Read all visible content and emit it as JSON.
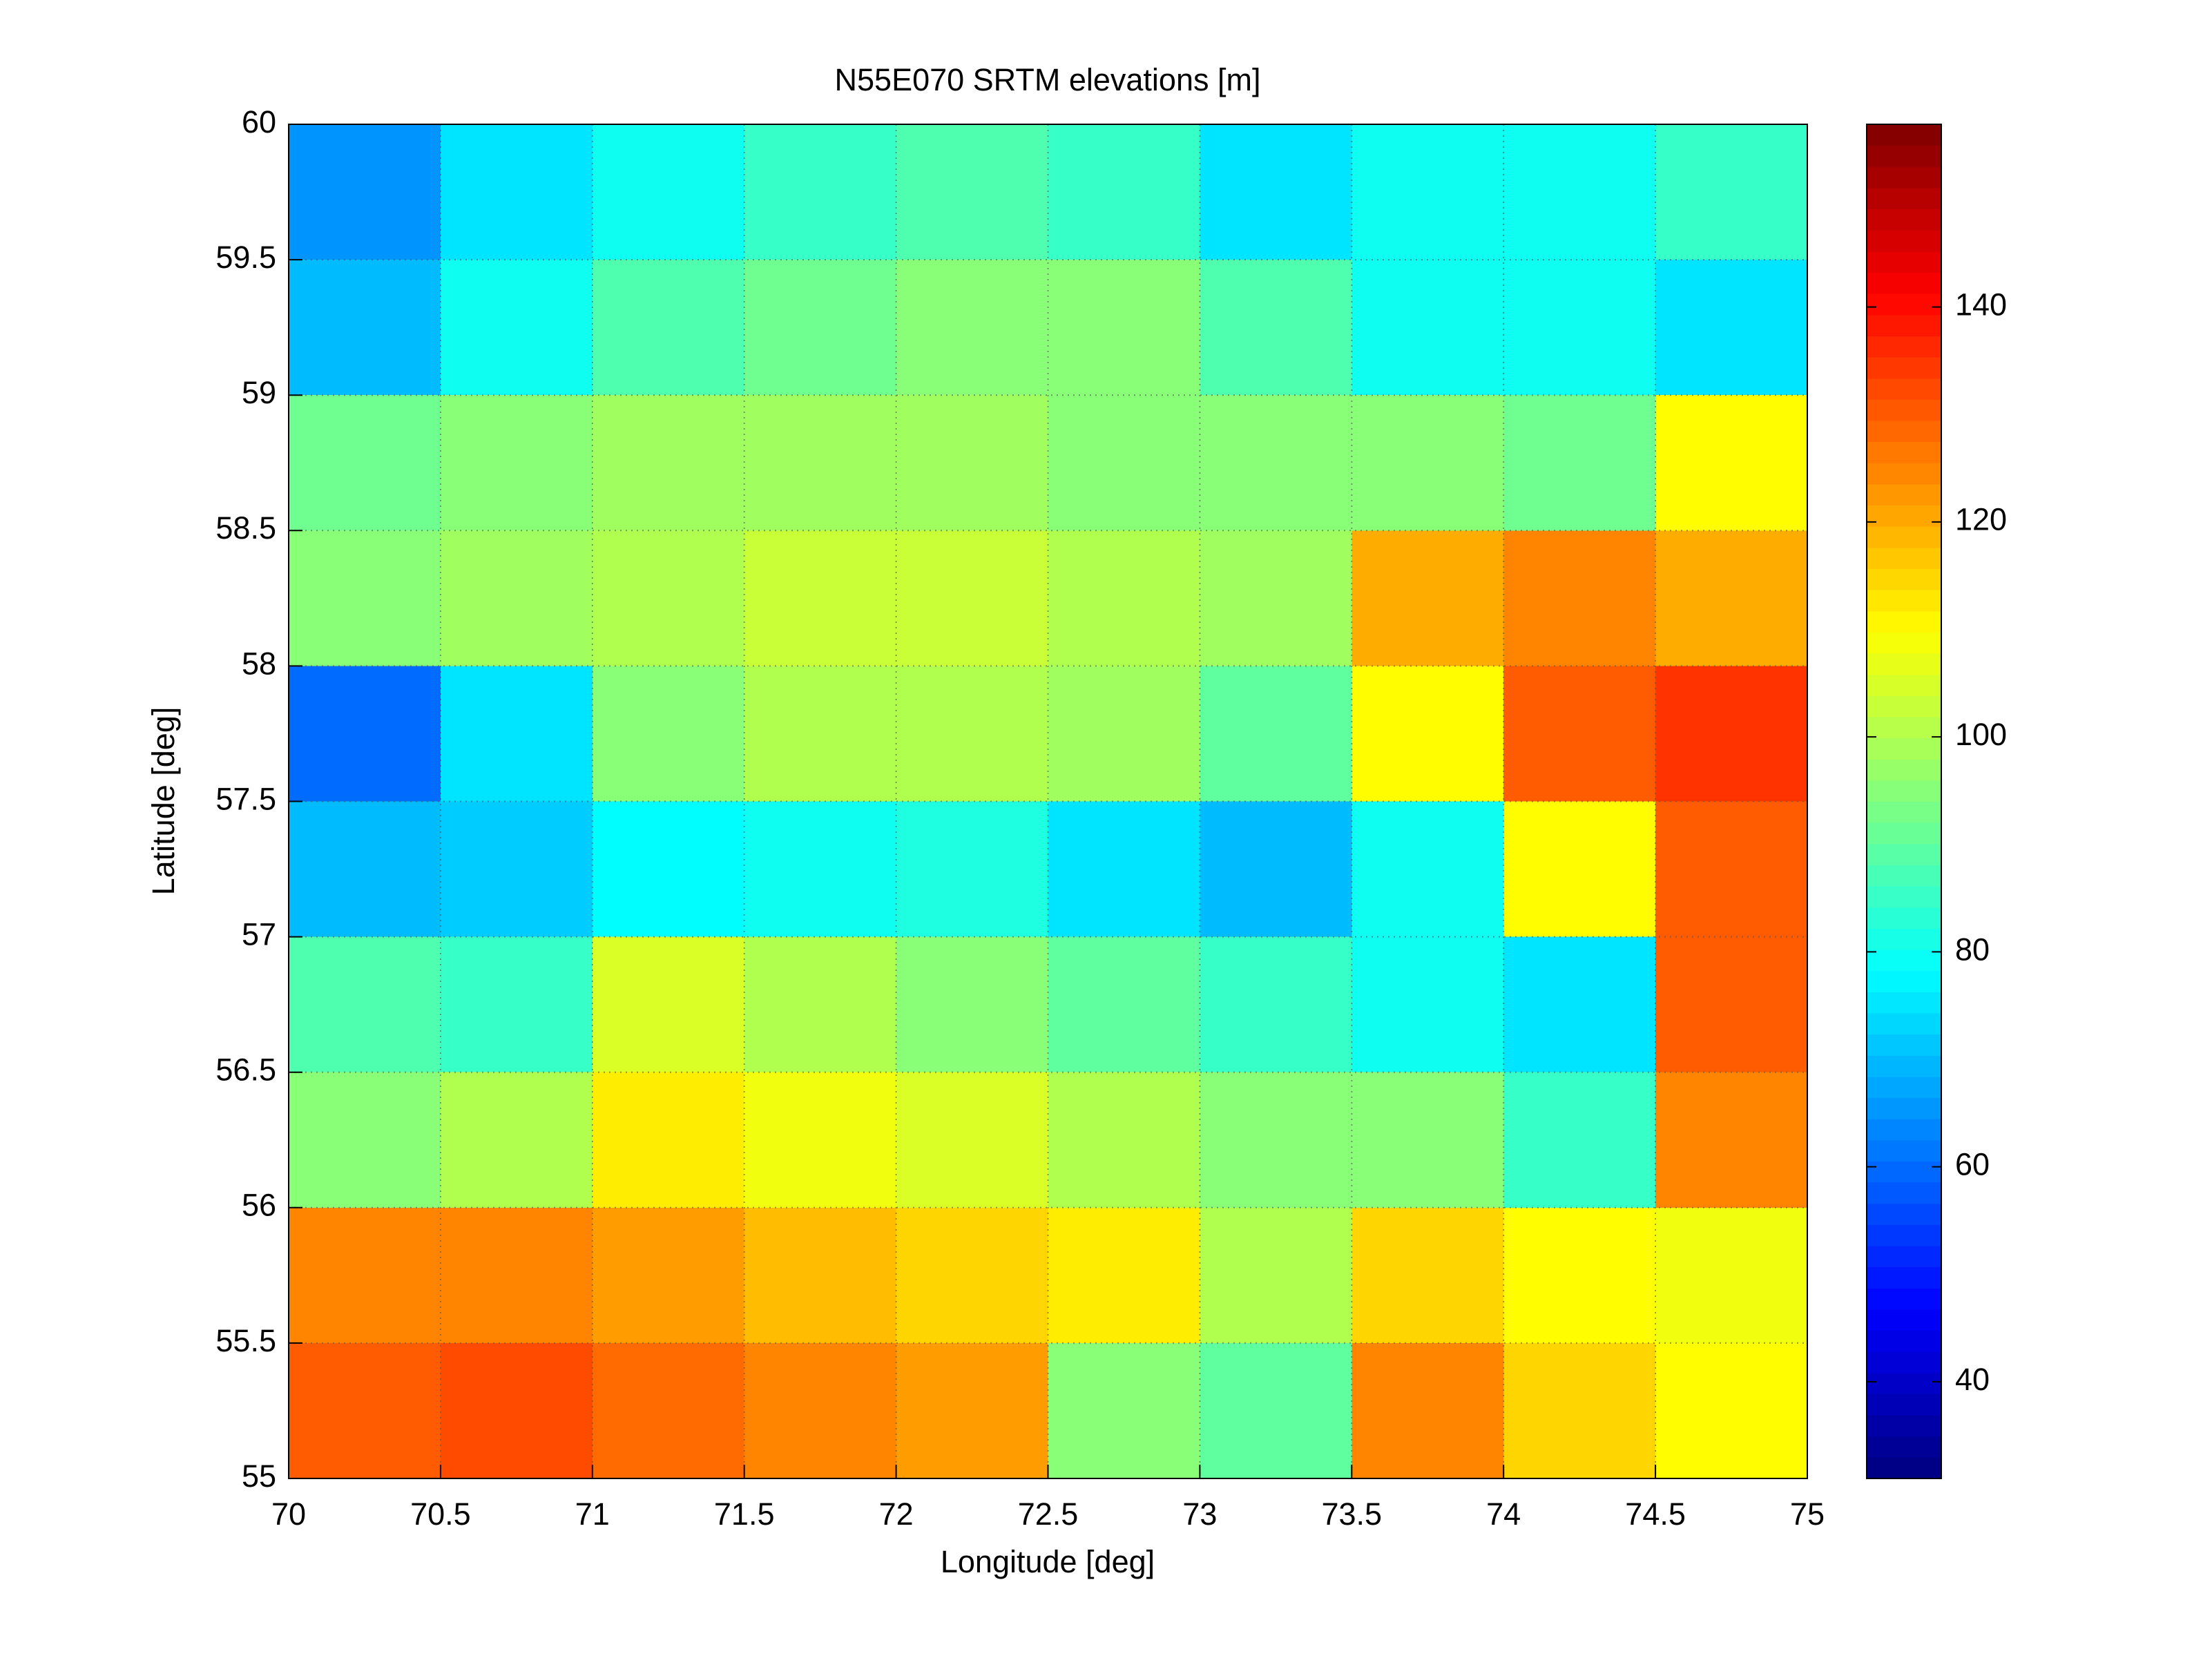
{
  "chart_data": {
    "type": "heatmap",
    "title": "N55E070 SRTM elevations [m]",
    "x_label": "Longitude [deg]",
    "y_label": "Latitude [deg]",
    "xlim": [
      70,
      75
    ],
    "ylim": [
      55,
      60
    ],
    "xticks": [
      70,
      70.5,
      71,
      71.5,
      72,
      72.5,
      73,
      73.5,
      74,
      74.5,
      75
    ],
    "yticks": [
      55,
      55.5,
      56,
      56.5,
      57,
      57.5,
      58,
      58.5,
      59,
      59.5,
      60
    ],
    "grid": true,
    "colormap": "jet",
    "clim": [
      31,
      157
    ],
    "cticks": [
      40,
      60,
      80,
      100,
      120,
      140
    ],
    "z": [
      [
        65,
        75,
        80,
        85,
        88,
        85,
        75,
        80,
        80,
        85
      ],
      [
        70,
        80,
        88,
        92,
        95,
        95,
        88,
        80,
        80,
        75
      ],
      [
        92,
        95,
        98,
        98,
        98,
        95,
        95,
        95,
        92,
        110
      ],
      [
        95,
        98,
        100,
        103,
        103,
        100,
        98,
        120,
        125,
        120
      ],
      [
        60,
        75,
        95,
        100,
        100,
        98,
        90,
        110,
        130,
        135
      ],
      [
        70,
        72,
        78,
        80,
        82,
        75,
        70,
        80,
        110,
        130
      ],
      [
        88,
        85,
        105,
        100,
        95,
        90,
        85,
        80,
        75,
        130
      ],
      [
        95,
        100,
        112,
        108,
        105,
        100,
        95,
        95,
        85,
        125
      ],
      [
        125,
        125,
        122,
        118,
        115,
        112,
        100,
        115,
        110,
        108
      ],
      [
        130,
        132,
        128,
        125,
        122,
        95,
        90,
        125,
        115,
        110
      ]
    ]
  }
}
